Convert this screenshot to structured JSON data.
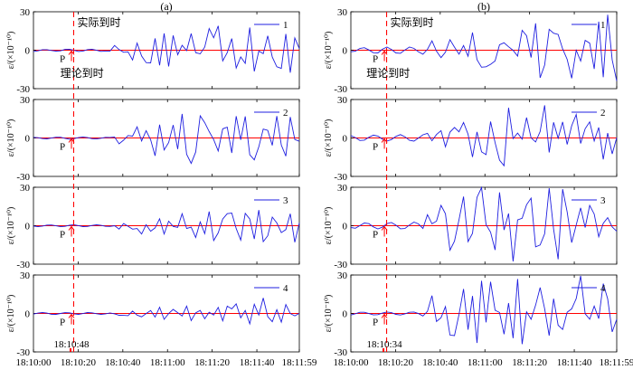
{
  "chart_data": [
    {
      "type": "line",
      "panel_label": "(a)",
      "actual_arrival_label": "实际到时",
      "theory_arrival_label": "理论到时",
      "p_label": "P",
      "arrival_time_label": "18:10:48",
      "actual_arrival_x": 18,
      "theory_arrival_x": 12,
      "p_arrow_x": 17,
      "ylabel": "ε/(×10⁻¹⁰)",
      "ylim": [
        -30,
        30
      ],
      "yticks": [
        "30",
        "0",
        "-30"
      ],
      "xlim": [
        0,
        119
      ],
      "xtick_labels": [
        "18:10:00",
        "18:10:20",
        "18:10:40",
        "18:11:00",
        "18:11:20",
        "18:11:40",
        "18:11:59"
      ],
      "xtick_values": [
        0,
        20,
        40,
        60,
        80,
        100,
        119
      ],
      "zero_line_color": "#ff0000",
      "series_color": "#1f1fe0",
      "subplots": [
        {
          "legend": "1",
          "values": [
            -1.0,
            -0.5,
            0.4,
            0.4,
            -0.2,
            -0.7,
            -0.5,
            0.6,
            0.8,
            -0.1,
            -1.0,
            -0.6,
            0.5,
            0.8,
            -0.1,
            -0.9,
            -0.6,
            -0.6,
            3.7,
            0.5,
            -1.6,
            -1.3,
            -7.6,
            5.6,
            -4.5,
            -9.7,
            -9.9,
            9.2,
            -11.8,
            13.1,
            -12.6,
            11.5,
            -3.5,
            3.8,
            -0.3,
            13.0,
            -1.9,
            -2.8,
            2.5,
            16.9,
            9.7,
            19.0,
            -8.3,
            -1.9,
            9.1,
            -13.9,
            -5.2,
            -10.2,
            17.7,
            -16.5,
            -0.6,
            -2.7,
            11.2,
            -5.4,
            -12.9,
            -14.2,
            12.7,
            -17.5,
            9.6,
            1.3
          ]
        },
        {
          "legend": "2",
          "values": [
            0.5,
            0.2,
            -0.5,
            -0.7,
            -0.1,
            0.6,
            0.6,
            -0.3,
            -1.0,
            -0.6,
            0.3,
            0.8,
            0.3,
            -0.6,
            -0.8,
            -0.2,
            0.5,
            0.4,
            0.7,
            -4.6,
            -1.7,
            1.9,
            1.4,
            8.7,
            -2.3,
            5.7,
            -1.4,
            -13.9,
            10.4,
            -9.3,
            -3.6,
            10.1,
            -8.7,
            18.8,
            -12.8,
            -19.8,
            -11.0,
            17.3,
            11.9,
            5.0,
            -1.3,
            -10.2,
            7.1,
            8.4,
            -11.7,
            17.0,
            -1.5,
            16.8,
            -13.1,
            -17.1,
            -6.9,
            6.9,
            5.9,
            -5.8,
            17.1,
            -5.6,
            -14.2,
            16.4,
            -1.2,
            -2.6
          ]
        },
        {
          "legend": "3",
          "values": [
            -0.3,
            -0.7,
            -0.3,
            0.5,
            0.6,
            -0.1,
            -0.8,
            -0.5,
            0.4,
            0.7,
            0.1,
            -0.7,
            -0.6,
            0.2,
            0.7,
            0.3,
            -0.5,
            -0.6,
            0.0,
            -2.6,
            1.7,
            -0.4,
            -2.7,
            -2.2,
            -6.5,
            0.8,
            -4.3,
            -1.7,
            5.4,
            -6.5,
            3.5,
            -0.6,
            -1.3,
            9.3,
            -2.2,
            -1.1,
            -9.2,
            3.0,
            -6.2,
            11.1,
            -11.6,
            -5.6,
            5.2,
            9.4,
            9.9,
            -2.2,
            -11.2,
            9.7,
            5.2,
            -10.4,
            12.2,
            -12.4,
            -7.8,
            6.7,
            2.2,
            -5.4,
            -3.0,
            9.3,
            -12.9,
            2.2
          ]
        },
        {
          "legend": "4",
          "values": [
            -0.5,
            0.3,
            0.7,
            0.3,
            -0.6,
            -0.7,
            -0.0,
            0.6,
            0.5,
            -0.3,
            -0.7,
            -0.1,
            0.7,
            0.5,
            -0.2,
            -0.7,
            -0.3,
            0.4,
            -0.3,
            -1.4,
            -1.5,
            -1.7,
            1.8,
            -1.3,
            -2.6,
            -0.1,
            2.3,
            -2.8,
            4.8,
            -4.6,
            -0.1,
            3.2,
            0.6,
            -2.0,
            5.7,
            -5.6,
            0.5,
            2.4,
            -4.2,
            1.0,
            -1.2,
            4.7,
            -5.7,
            5.7,
            3.6,
            7.5,
            -3.4,
            2.3,
            -8.1,
            7.2,
            -1.2,
            12.1,
            -2.5,
            -6.4,
            3.0,
            -6.8,
            6.9,
            -0.1,
            -1.8,
            0.1
          ]
        }
      ]
    },
    {
      "type": "line",
      "panel_label": "(b)",
      "actual_arrival_label": "实际到时",
      "theory_arrival_label": "理论到时",
      "p_label": "P",
      "arrival_time_label": "18:10:34",
      "actual_arrival_x": 16,
      "theory_arrival_x": 7,
      "p_arrow_x": 15,
      "ylabel": "ε/(×10⁻¹⁰)",
      "ylim": [
        -30,
        30
      ],
      "yticks": [
        "30",
        "0",
        "-30"
      ],
      "xlim": [
        0,
        119
      ],
      "xtick_labels": [
        "18:10:00",
        "18:10:20",
        "18:10:40",
        "18:11:00",
        "18:11:20",
        "18:11:40",
        "18:11:59"
      ],
      "xtick_values": [
        0,
        20,
        40,
        60,
        80,
        100,
        119
      ],
      "zero_line_color": "#ff0000",
      "series_color": "#1f1fe0",
      "subplots": [
        {
          "legend": "1",
          "values": [
            -1.2,
            -0.8,
            1.4,
            2.0,
            0.2,
            -2.0,
            -2.1,
            0.8,
            2.5,
            0.6,
            -2.1,
            -2.4,
            0.2,
            2.5,
            1.4,
            -1.3,
            -3.1,
            0.7,
            7.3,
            -0.7,
            -5.8,
            -1.5,
            8.2,
            2.4,
            -3.1,
            3.7,
            -4.7,
            13.8,
            -7.4,
            -13.3,
            -12.9,
            -11.0,
            -8.4,
            4.2,
            5.8,
            2.7,
            -0.1,
            -4.6,
            15.5,
            11.3,
            -5.7,
            21.0,
            -21.5,
            -11.6,
            16.3,
            13.3,
            12.3,
            1.0,
            -7.1,
            -21.9,
            0.0,
            -8.5,
            7.7,
            5.5,
            -14.6,
            22.3,
            -21.1,
            27.7,
            -7.6,
            -24.0
          ]
        },
        {
          "legend": "2",
          "values": [
            1.8,
            0.3,
            -2.0,
            -1.7,
            0.5,
            2.2,
            1.5,
            -0.9,
            -2.4,
            -1.3,
            1.2,
            2.6,
            0.9,
            -1.8,
            -2.5,
            -0.1,
            2.5,
            3.6,
            -2.2,
            2.7,
            5.7,
            -6.9,
            4.6,
            8.2,
            4.8,
            12.1,
            2.9,
            -14.9,
            4.7,
            -10.9,
            -13.0,
            12.8,
            -3.7,
            -17.3,
            -21.7,
            23.6,
            -0.5,
            3.8,
            -0.9,
            15.9,
            0.1,
            -3.1,
            5.0,
            25.5,
            -11.3,
            12.2,
            -0.2,
            12.5,
            -5.0,
            9.5,
            18.3,
            -4.3,
            7.2,
            12.6,
            -2.4,
            8.2,
            -16.7,
            3.8,
            -12.4,
            0.3
          ]
        },
        {
          "legend": "3",
          "values": [
            -1.4,
            -2.0,
            0.1,
            2.1,
            1.6,
            -0.9,
            -2.5,
            -1.1,
            1.6,
            2.5,
            0.4,
            -2.4,
            -2.2,
            0.6,
            2.8,
            1.4,
            -2.1,
            8.6,
            1.5,
            3.5,
            15.9,
            9.3,
            -19.1,
            -12.1,
            4.7,
            22.7,
            -12.4,
            -6.0,
            22.2,
            29.7,
            0.9,
            -5.1,
            -18.9,
            26.0,
            -3.3,
            9.5,
            -27.9,
            4.5,
            5.8,
            16.4,
            21.5,
            -16.5,
            -15.0,
            -6.3,
            29.3,
            -2.7,
            -26.2,
            28.5,
            10.7,
            -13.2,
            0.6,
            13.9,
            -1.4,
            15.8,
            9.1,
            -8.6,
            1.8,
            6.3,
            -0.9,
            -4.3
          ]
        },
        {
          "legend": "4",
          "values": [
            -1.2,
            -0.2,
            0.9,
            0.9,
            -0.1,
            -1.1,
            -0.9,
            0.3,
            1.1,
            0.6,
            -0.7,
            -1.2,
            -0.3,
            0.9,
            1.1,
            -0.1,
            -2.0,
            1.6,
            13.9,
            -6.3,
            -3.3,
            5.4,
            -16.9,
            -17.3,
            -0.8,
            19.1,
            -12.6,
            13.6,
            -23.0,
            25.5,
            -6.9,
            24.7,
            2.5,
            0.8,
            -16.2,
            8.1,
            -19.3,
            26.9,
            -23.9,
            1.3,
            -4.5,
            6.5,
            20.2,
            3.7,
            -17.3,
            11.5,
            -9.2,
            -12.5,
            1.0,
            3.6,
            11.6,
            29.3,
            -0.2,
            -4.5,
            5.8,
            -4.0,
            23.3,
            11.4,
            -14.4,
            -4.5
          ]
        }
      ]
    }
  ]
}
